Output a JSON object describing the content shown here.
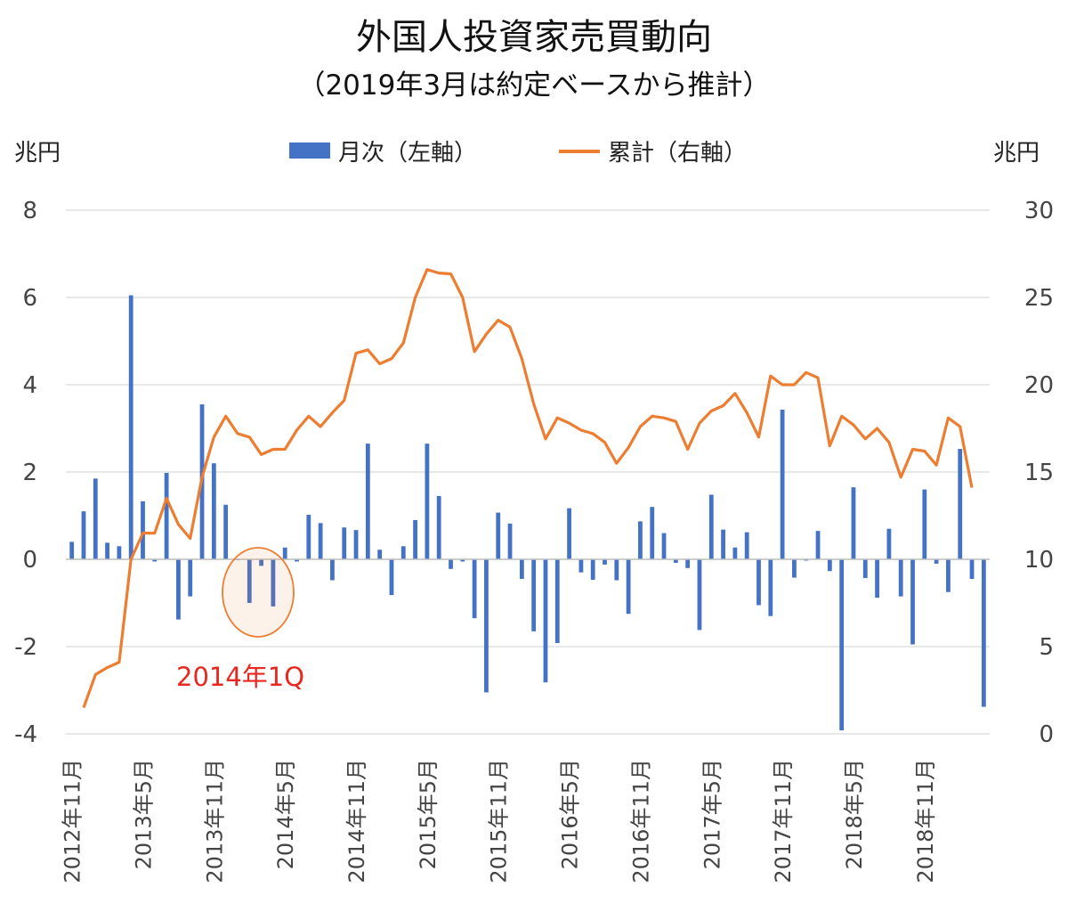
{
  "chart_data": {
    "type": "bar+line",
    "title": "外国人投資家売買動向",
    "subtitle": "（2019年3月は約定ベースから推計）",
    "left_unit": "兆円",
    "right_unit": "兆円",
    "left_ylim": [
      -4,
      8
    ],
    "left_yticks": [
      "-4",
      "-2",
      "0",
      "2",
      "4",
      "6",
      "8"
    ],
    "right_ylim": [
      0,
      30
    ],
    "right_yticks": [
      "0",
      "5",
      "10",
      "15",
      "20",
      "25",
      "30"
    ],
    "grid": true,
    "legend_position": "top-center",
    "x_tick_labels": [
      "2012年11月",
      "2013年5月",
      "2013年11月",
      "2014年5月",
      "2014年11月",
      "2015年5月",
      "2015年11月",
      "2016年5月",
      "2016年11月",
      "2017年5月",
      "2017年11月",
      "2018年5月",
      "2018年11月"
    ],
    "series": [
      {
        "name": "月次（左軸）",
        "type": "bar",
        "axis": "left",
        "color": "#4472c4",
        "values": [
          0.4,
          1.1,
          1.85,
          0.38,
          0.3,
          6.05,
          1.33,
          -0.05,
          1.98,
          -1.38,
          -0.85,
          3.55,
          2.2,
          1.25,
          -0.02,
          -1.0,
          -0.15,
          -1.08,
          0.27,
          -0.05,
          1.02,
          0.83,
          -0.48,
          0.73,
          0.67,
          2.65,
          0.22,
          -0.82,
          0.3,
          0.9,
          2.65,
          1.45,
          -0.22,
          -0.05,
          -1.35,
          -3.05,
          1.07,
          0.82,
          -0.45,
          -1.65,
          -2.82,
          -1.92,
          1.17,
          -0.3,
          -0.47,
          -0.12,
          -0.48,
          -1.25,
          0.87,
          1.2,
          0.6,
          -0.08,
          -0.2,
          -1.62,
          1.48,
          0.68,
          0.27,
          0.62,
          -1.05,
          -1.3,
          3.43,
          -0.42,
          -0.03,
          0.65,
          -0.27,
          -3.92,
          1.65,
          -0.43,
          -0.88,
          0.7,
          -0.85,
          -1.95,
          1.6,
          -0.1,
          -0.75,
          2.53,
          -0.45,
          -3.38
        ]
      },
      {
        "name": "累計（右軸）",
        "type": "line",
        "axis": "right",
        "color": "#ed7d31",
        "start_index": 1,
        "values": [
          1.5,
          3.4,
          3.8,
          4.1,
          10.0,
          11.5,
          11.5,
          13.5,
          12.0,
          11.2,
          14.7,
          17.0,
          18.2,
          17.2,
          17.0,
          16.0,
          16.3,
          16.3,
          17.4,
          18.2,
          17.6,
          18.4,
          19.1,
          21.8,
          22.0,
          21.2,
          21.5,
          22.4,
          25.0,
          26.6,
          26.4,
          26.35,
          25.0,
          21.9,
          22.9,
          23.7,
          23.3,
          21.5,
          18.9,
          16.9,
          18.1,
          17.8,
          17.4,
          17.2,
          16.7,
          15.5,
          16.4,
          17.6,
          18.2,
          18.1,
          17.9,
          16.3,
          17.8,
          18.5,
          18.8,
          19.5,
          18.4,
          17.0,
          20.5,
          20.0,
          20.0,
          20.7,
          20.4,
          16.5,
          18.2,
          17.7,
          16.9,
          17.5,
          16.7,
          14.7,
          16.3,
          16.2,
          15.4,
          18.1,
          17.6,
          14.1
        ]
      }
    ],
    "annotations": [
      {
        "text": "2014年1Q",
        "color": "#e8271f",
        "x_index": 16
      }
    ]
  }
}
